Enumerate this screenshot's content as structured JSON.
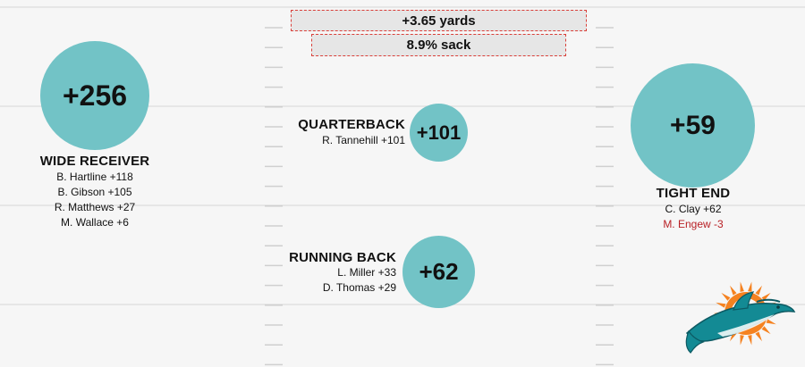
{
  "colors": {
    "circle": "#72c3c6",
    "negative": "#b81f24",
    "accent": "#d9403a"
  },
  "stats": {
    "yards": "+3.65 yards",
    "sack": "8.9% sack"
  },
  "positions": {
    "wide_receiver": {
      "value": "+256",
      "label": "WIDE RECEIVER",
      "players": [
        "B. Hartline +118",
        "B. Gibson +105",
        "R. Matthews +27",
        "M. Wallace +6"
      ]
    },
    "quarterback": {
      "value": "+101",
      "label": "QUARTERBACK",
      "players": [
        "R. Tannehill +101"
      ]
    },
    "running_back": {
      "value": "+62",
      "label": "RUNNING BACK",
      "players": [
        "L. Miller +33",
        "D. Thomas +29"
      ]
    },
    "tight_end": {
      "value": "+59",
      "label": "TIGHT END",
      "players": [
        "C. Clay +62",
        "M. Engew -3"
      ]
    }
  },
  "logo": {
    "icon": "dolphins-logo-icon"
  }
}
